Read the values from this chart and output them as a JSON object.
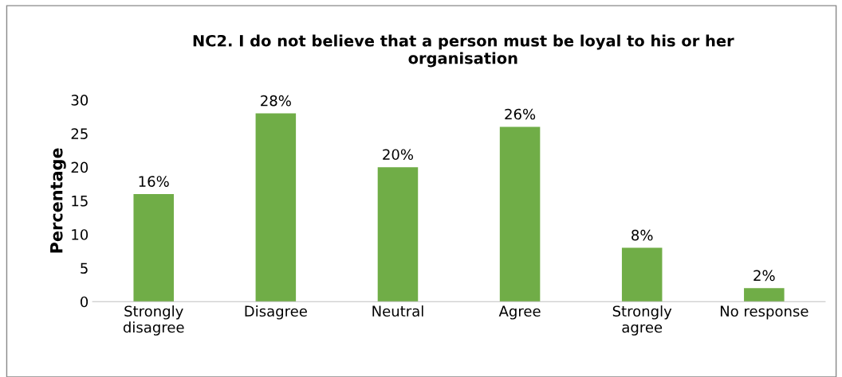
{
  "chart_data": {
    "type": "bar",
    "title": "NC2. I do not believe that a person must be loyal to his or her\norganisation",
    "ylabel": "Percentage",
    "categories": [
      "Strongly\ndisagree",
      "Disagree",
      "Neutral",
      "Agree",
      "Strongly\nagree",
      "No response"
    ],
    "values": [
      16,
      28,
      20,
      26,
      8,
      2
    ],
    "color": "#70ad47",
    "value_labels": [
      "16%",
      "28%",
      "20%",
      "26%",
      "8%",
      "2%"
    ],
    "ylim": [
      0,
      30
    ],
    "yticks": [
      0,
      5,
      10,
      15,
      20,
      25,
      30
    ],
    "grid": false,
    "legend": false
  }
}
